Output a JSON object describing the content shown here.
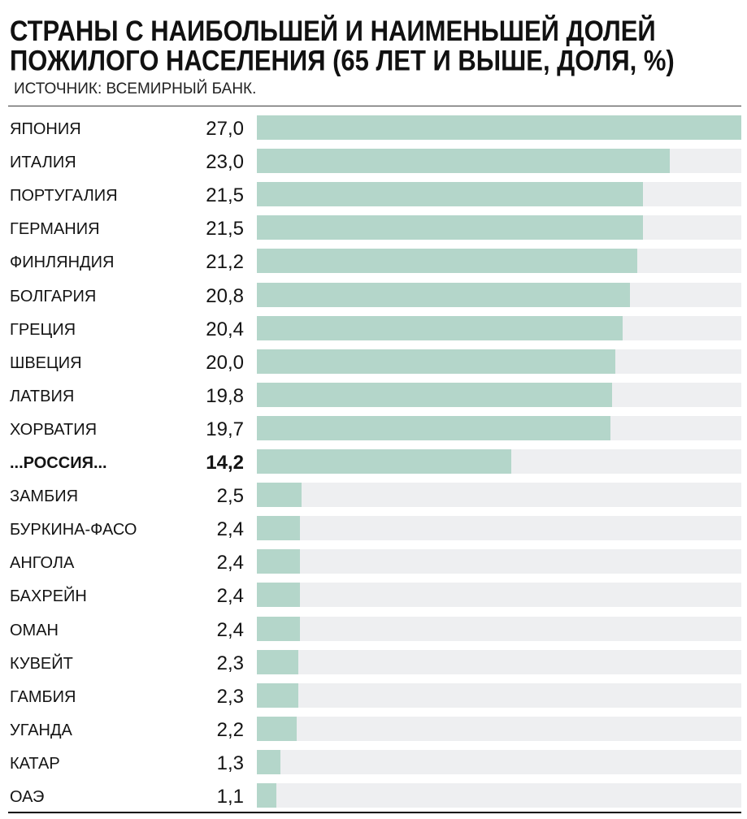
{
  "chart_data": {
    "type": "bar",
    "orientation": "horizontal",
    "title": "СТРАНЫ С НАИБОЛЬШЕЙ И НАИМЕНЬШЕЙ ДОЛЕЙ ПОЖИЛОГО НАСЕЛЕНИЯ (65 ЛЕТ И ВЫШЕ, ДОЛЯ, %)",
    "source": "ИСТОЧНИК: ВСЕМИРНЫЙ БАНК.",
    "categories": [
      "ЯПОНИЯ",
      "ИТАЛИЯ",
      "ПОРТУГАЛИЯ",
      "ГЕРМАНИЯ",
      "ФИНЛЯНДИЯ",
      "БОЛГАРИЯ",
      "ГРЕЦИЯ",
      "ШВЕЦИЯ",
      "ЛАТВИЯ",
      "ХОРВАТИЯ",
      "...РОССИЯ...",
      "ЗАМБИЯ",
      "БУРКИНА-ФАСО",
      "АНГОЛА",
      "БАХРЕЙН",
      "ОМАН",
      "КУВЕЙТ",
      "ГАМБИЯ",
      "УГАНДА",
      "КАТАР",
      "ОАЭ"
    ],
    "values": [
      27.0,
      23.0,
      21.5,
      21.5,
      21.2,
      20.8,
      20.4,
      20.0,
      19.8,
      19.7,
      14.2,
      2.5,
      2.4,
      2.4,
      2.4,
      2.4,
      2.3,
      2.3,
      2.2,
      1.3,
      1.1
    ],
    "value_labels": [
      "27,0",
      "23,0",
      "21,5",
      "21,5",
      "21,2",
      "20,8",
      "20,4",
      "20,0",
      "19,8",
      "19,7",
      "14,2",
      "2,5",
      "2,4",
      "2,4",
      "2,4",
      "2,4",
      "2,3",
      "2,3",
      "2,2",
      "1,3",
      "1,1"
    ],
    "emphasized": [
      false,
      false,
      false,
      false,
      false,
      false,
      false,
      false,
      false,
      false,
      true,
      false,
      false,
      false,
      false,
      false,
      false,
      false,
      false,
      false,
      false
    ],
    "xlim": [
      0,
      27
    ],
    "grid": false,
    "bar_color": "#b4d6ca",
    "track_color": "#eeeff1"
  }
}
